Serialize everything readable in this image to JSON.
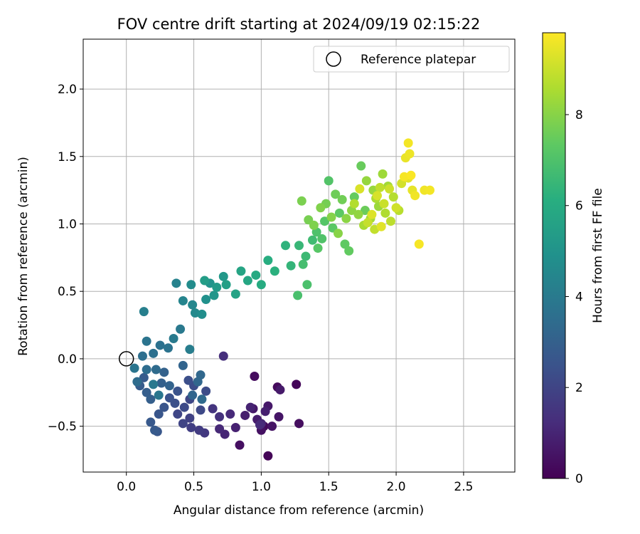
{
  "chart_data": {
    "type": "scatter",
    "title": "FOV centre drift starting at 2024/09/19 02:15:22",
    "xlabel": "Angular distance from reference (arcmin)",
    "ylabel": "Rotation from reference (arcmin)",
    "xlim": [
      -0.32,
      2.88
    ],
    "ylim": [
      -0.84,
      2.37
    ],
    "xticks": [
      0.0,
      0.5,
      1.0,
      1.5,
      2.0,
      2.5
    ],
    "yticks": [
      -0.5,
      0.0,
      0.5,
      1.0,
      1.5,
      2.0
    ],
    "xtick_labels": [
      "0.0",
      "0.5",
      "1.0",
      "1.5",
      "2.0",
      "2.5"
    ],
    "ytick_labels": [
      "−0.5",
      "0.0",
      "0.5",
      "1.0",
      "1.5",
      "2.0"
    ],
    "grid": true,
    "legend": {
      "placement": "top-right",
      "entries": [
        "Reference platepar"
      ]
    },
    "reference_point": {
      "x": 0.0,
      "y": 0.0,
      "label": "Reference platepar"
    },
    "colorbar": {
      "label": "Hours from first FF file",
      "range": [
        0,
        9.8
      ],
      "ticks": [
        0,
        2,
        4,
        6,
        8
      ],
      "tick_labels": [
        "0",
        "2",
        "4",
        "6",
        "8"
      ],
      "colormap": "viridis"
    },
    "points": [
      [
        1.05,
        -0.72,
        0.1
      ],
      [
        1.26,
        -0.19,
        0.15
      ],
      [
        1.02,
        -0.5,
        0.2
      ],
      [
        1.12,
        -0.21,
        0.25
      ],
      [
        0.95,
        -0.13,
        0.3
      ],
      [
        1.28,
        -0.48,
        0.35
      ],
      [
        0.84,
        -0.64,
        0.4
      ],
      [
        1.0,
        -0.53,
        0.45
      ],
      [
        1.08,
        -0.5,
        0.5
      ],
      [
        1.13,
        -0.43,
        0.55
      ],
      [
        0.94,
        -0.37,
        0.6
      ],
      [
        1.05,
        -0.35,
        0.65
      ],
      [
        1.14,
        -0.23,
        0.7
      ],
      [
        0.97,
        -0.45,
        0.75
      ],
      [
        0.88,
        -0.42,
        0.8
      ],
      [
        1.03,
        -0.39,
        0.85
      ],
      [
        0.81,
        -0.51,
        0.9
      ],
      [
        0.92,
        -0.36,
        0.95
      ],
      [
        0.73,
        -0.56,
        1.0
      ],
      [
        1.0,
        -0.48,
        1.05
      ],
      [
        0.69,
        -0.52,
        1.1
      ],
      [
        0.77,
        -0.41,
        1.15
      ],
      [
        0.99,
        -0.49,
        1.2
      ],
      [
        0.72,
        0.02,
        1.3
      ],
      [
        0.69,
        -0.43,
        1.4
      ],
      [
        0.64,
        -0.37,
        1.5
      ],
      [
        0.58,
        -0.55,
        1.6
      ],
      [
        0.54,
        -0.53,
        1.7
      ],
      [
        0.48,
        -0.51,
        1.8
      ],
      [
        0.47,
        -0.44,
        1.9
      ],
      [
        0.42,
        -0.48,
        2.0
      ],
      [
        0.38,
        -0.41,
        2.05
      ],
      [
        0.47,
        -0.3,
        2.1
      ],
      [
        0.55,
        -0.38,
        2.15
      ],
      [
        0.43,
        -0.36,
        2.2
      ],
      [
        0.59,
        -0.24,
        2.25
      ],
      [
        0.5,
        -0.2,
        2.3
      ],
      [
        0.46,
        -0.16,
        2.35
      ],
      [
        0.36,
        -0.33,
        2.4
      ],
      [
        0.32,
        -0.29,
        2.45
      ],
      [
        0.38,
        -0.24,
        2.5
      ],
      [
        0.28,
        -0.36,
        2.55
      ],
      [
        0.24,
        -0.41,
        2.6
      ],
      [
        0.23,
        -0.54,
        2.65
      ],
      [
        0.18,
        -0.47,
        2.7
      ],
      [
        0.21,
        -0.53,
        2.75
      ],
      [
        0.13,
        -0.14,
        2.8
      ],
      [
        0.1,
        -0.2,
        2.85
      ],
      [
        0.15,
        -0.25,
        2.9
      ],
      [
        0.18,
        -0.3,
        2.95
      ],
      [
        0.26,
        -0.18,
        3.0
      ],
      [
        0.28,
        -0.1,
        3.05
      ],
      [
        0.32,
        -0.2,
        3.1
      ],
      [
        0.42,
        -0.05,
        3.15
      ],
      [
        0.49,
        -0.27,
        3.2
      ],
      [
        0.53,
        -0.17,
        3.25
      ],
      [
        0.55,
        -0.12,
        3.3
      ],
      [
        0.56,
        -0.3,
        3.35
      ],
      [
        0.22,
        -0.08,
        3.4
      ],
      [
        0.08,
        -0.17,
        3.45
      ],
      [
        0.15,
        -0.08,
        3.5
      ],
      [
        0.12,
        0.02,
        3.55
      ],
      [
        0.2,
        0.04,
        3.6
      ],
      [
        0.25,
        0.1,
        3.65
      ],
      [
        0.31,
        0.08,
        3.7
      ],
      [
        0.15,
        0.13,
        3.75
      ],
      [
        0.06,
        -0.07,
        3.8
      ],
      [
        0.24,
        -0.27,
        3.85
      ],
      [
        0.2,
        -0.19,
        3.9
      ],
      [
        0.4,
        0.22,
        3.95
      ],
      [
        0.35,
        0.15,
        4.0
      ],
      [
        0.47,
        0.07,
        4.1
      ],
      [
        0.13,
        0.35,
        4.2
      ],
      [
        0.37,
        0.56,
        4.3
      ],
      [
        0.42,
        0.43,
        4.4
      ],
      [
        0.49,
        0.4,
        4.5
      ],
      [
        0.51,
        0.34,
        4.6
      ],
      [
        0.48,
        0.55,
        4.7
      ],
      [
        0.56,
        0.33,
        4.8
      ],
      [
        0.59,
        0.44,
        4.9
      ],
      [
        0.62,
        0.56,
        5.0
      ],
      [
        0.65,
        0.47,
        5.1
      ],
      [
        0.72,
        0.61,
        5.2
      ],
      [
        0.67,
        0.53,
        5.3
      ],
      [
        0.58,
        0.58,
        5.4
      ],
      [
        0.74,
        0.55,
        5.5
      ],
      [
        0.81,
        0.48,
        5.6
      ],
      [
        0.85,
        0.65,
        5.7
      ],
      [
        0.9,
        0.58,
        5.8
      ],
      [
        0.96,
        0.62,
        5.9
      ],
      [
        1.0,
        0.55,
        6.0
      ],
      [
        1.05,
        0.73,
        6.1
      ],
      [
        1.1,
        0.65,
        6.2
      ],
      [
        1.18,
        0.84,
        6.3
      ],
      [
        1.22,
        0.69,
        6.4
      ],
      [
        1.28,
        0.84,
        6.5
      ],
      [
        1.33,
        0.76,
        6.6
      ],
      [
        1.38,
        0.88,
        6.7
      ],
      [
        1.31,
        0.7,
        6.8
      ],
      [
        1.27,
        0.47,
        6.9
      ],
      [
        1.34,
        0.55,
        6.95
      ],
      [
        1.41,
        0.94,
        7.0
      ],
      [
        1.45,
        0.89,
        7.05
      ],
      [
        1.5,
        1.32,
        7.1
      ],
      [
        1.47,
        1.02,
        7.15
      ],
      [
        1.42,
        0.82,
        7.2
      ],
      [
        1.53,
        0.97,
        7.25
      ],
      [
        1.58,
        1.08,
        7.3
      ],
      [
        1.62,
        0.85,
        7.35
      ],
      [
        1.65,
        0.8,
        7.4
      ],
      [
        1.69,
        1.2,
        7.45
      ],
      [
        1.74,
        1.43,
        7.5
      ],
      [
        1.77,
        1.1,
        7.55
      ],
      [
        1.55,
        1.22,
        7.6
      ],
      [
        1.6,
        1.18,
        7.65
      ],
      [
        1.48,
        1.15,
        7.7
      ],
      [
        1.35,
        1.03,
        7.75
      ],
      [
        1.3,
        1.17,
        7.8
      ],
      [
        1.39,
        0.99,
        7.85
      ],
      [
        1.44,
        1.12,
        7.9
      ],
      [
        1.52,
        1.05,
        7.95
      ],
      [
        1.57,
        0.93,
        8.0
      ],
      [
        1.63,
        1.04,
        8.05
      ],
      [
        1.67,
        1.1,
        8.1
      ],
      [
        1.72,
        1.07,
        8.15
      ],
      [
        1.78,
        1.32,
        8.2
      ],
      [
        1.83,
        1.25,
        8.25
      ],
      [
        1.87,
        1.13,
        8.3
      ],
      [
        1.9,
        1.37,
        8.35
      ],
      [
        1.94,
        1.28,
        8.4
      ],
      [
        1.81,
        1.04,
        8.45
      ],
      [
        1.76,
        0.99,
        8.5
      ],
      [
        1.85,
        1.19,
        8.55
      ],
      [
        1.92,
        1.08,
        8.6
      ],
      [
        1.69,
        1.15,
        8.65
      ],
      [
        1.98,
        1.2,
        8.7
      ],
      [
        2.02,
        1.1,
        8.75
      ],
      [
        1.96,
        1.02,
        8.8
      ],
      [
        1.88,
        1.27,
        8.85
      ],
      [
        1.84,
        0.96,
        8.9
      ],
      [
        1.79,
        1.01,
        8.95
      ],
      [
        1.91,
        1.15,
        9.0
      ],
      [
        1.95,
        1.26,
        9.05
      ],
      [
        2.0,
        1.12,
        9.1
      ],
      [
        2.04,
        1.3,
        9.15
      ],
      [
        1.86,
        1.21,
        9.2
      ],
      [
        1.73,
        1.26,
        9.25
      ],
      [
        1.82,
        1.07,
        9.3
      ],
      [
        1.89,
        0.98,
        9.35
      ],
      [
        2.09,
        1.34,
        9.4
      ],
      [
        2.12,
        1.25,
        9.45
      ],
      [
        2.07,
        1.49,
        9.5
      ],
      [
        2.1,
        1.52,
        9.55
      ],
      [
        2.14,
        1.21,
        9.6
      ],
      [
        2.21,
        1.25,
        9.6
      ],
      [
        2.25,
        1.25,
        9.65
      ],
      [
        2.09,
        1.6,
        9.65
      ],
      [
        2.06,
        1.35,
        9.7
      ],
      [
        2.17,
        0.85,
        9.7
      ],
      [
        2.11,
        1.36,
        9.75
      ]
    ]
  }
}
